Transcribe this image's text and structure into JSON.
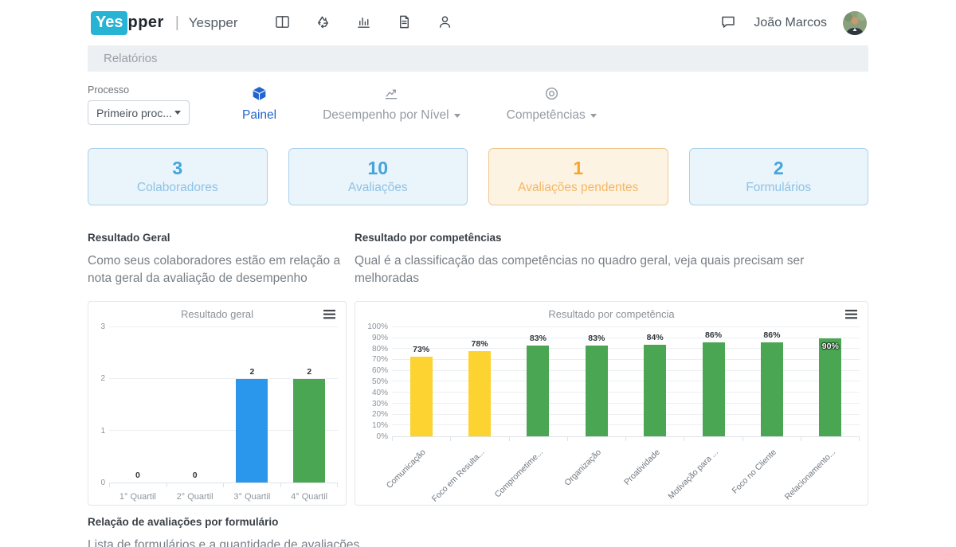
{
  "navbar": {
    "logo_primary": "Yes",
    "logo_secondary": "pper",
    "divider": "|",
    "app_name": "Yespper",
    "user_name": "João Marcos"
  },
  "breadcrumb": {
    "label": "Relatórios"
  },
  "filter": {
    "label": "Processo",
    "value": "Primeiro proc..."
  },
  "tabs": [
    {
      "label": "Painel",
      "active": true
    },
    {
      "label": "Desempenho por Nível",
      "active": false,
      "has_caret": true
    },
    {
      "label": "Competências",
      "active": false,
      "has_caret": true
    }
  ],
  "stat_cards": [
    {
      "value": "3",
      "label": "Colaboradores",
      "variant": "blue"
    },
    {
      "value": "10",
      "label": "Avaliações",
      "variant": "blue"
    },
    {
      "value": "1",
      "label": "Avaliações pendentes",
      "variant": "orange"
    },
    {
      "value": "2",
      "label": "Formulários",
      "variant": "blue"
    }
  ],
  "sections": {
    "resultado_geral": {
      "title": "Resultado Geral",
      "description": "Como seus colaboradores estão em relação a nota geral da avaliação de desempenho"
    },
    "resultado_competencias": {
      "title": "Resultado por competências",
      "description": "Qual é a classificação das competências no quadro geral, veja quais precisam ser melhoradas"
    },
    "avaliacoes_por_formulario": {
      "title": "Relação de avaliações por formulário",
      "description": "Lista de formulários e a quantidade de avaliações"
    }
  },
  "chart_data": [
    {
      "type": "bar",
      "title": "Resultado geral",
      "categories": [
        "1° Quartil",
        "2° Quartil",
        "3° Quartil",
        "4° Quartil"
      ],
      "values": [
        0,
        0,
        2,
        2
      ],
      "bar_colors": [
        "#2b97ec",
        "#2b97ec",
        "#2b97ec",
        "#4aa653"
      ],
      "ylim": [
        0,
        3
      ],
      "ytick_step": 1,
      "value_suffix": "",
      "rotate_xlabels": false,
      "grid": true,
      "legend": "none"
    },
    {
      "type": "bar",
      "title": "Resultado por competência",
      "categories": [
        "Comunicação",
        "Foco em Resulta...",
        "Comprometime...",
        "Organização",
        "Proatividade",
        "Motivação para ...",
        "Foco no Cliente",
        "Relacionamento..."
      ],
      "values": [
        73,
        78,
        83,
        83,
        84,
        86,
        86,
        90
      ],
      "bar_colors": [
        "#fdd331",
        "#fdd331",
        "#4aa653",
        "#4aa653",
        "#4aa653",
        "#4aa653",
        "#4aa653",
        "#4aa653"
      ],
      "ylim": [
        0,
        100
      ],
      "ytick_step": 10,
      "value_suffix": "%",
      "rotate_xlabels": true,
      "grid": true,
      "legend": "none"
    }
  ],
  "colors": {
    "logo_cyan": "#27b3d4",
    "accent_blue": "#2265cf",
    "card_blue_text": "#45a4da",
    "card_orange_text": "#f6a630",
    "bar_blue": "#2b97ec",
    "bar_green": "#4aa653",
    "bar_yellow": "#fdd331"
  }
}
